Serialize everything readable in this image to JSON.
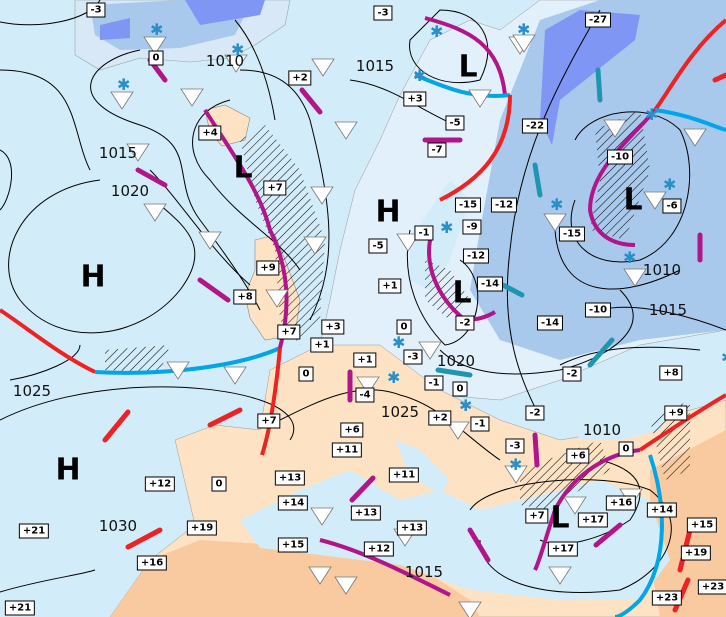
{
  "map": {
    "colors": {
      "sea": "#d3ecf9",
      "land_warm": "#fde3c4",
      "land_hot": "#f9c9a0",
      "land_cold": "#e2f0fb",
      "snow_light": "#a9c9ec",
      "snow_deep": "#7f96f4",
      "warm_front": "#ee2222",
      "cold_front": "#00a6e8",
      "occluded_front": "#b0168a",
      "cold_arrow": "#1e96b0",
      "isobar": "#000000"
    },
    "temperatures": [
      "-3",
      "0",
      "+2",
      "+4",
      "+7",
      "+9",
      "+8",
      "-3",
      "-27",
      "+3",
      "-5",
      "-7",
      "-22",
      "-10",
      "-6",
      "-15",
      "-12",
      "-9",
      "-5",
      "-1",
      "-15",
      "-12",
      "-14",
      "+1",
      "-2",
      "0",
      "-14",
      "-10",
      "+3",
      "+7",
      "+1",
      "0",
      "+1",
      "-3",
      "-4",
      "-1",
      "0",
      "+2",
      "-1",
      "+6",
      "+11",
      "-2",
      "-3",
      "+6",
      "0",
      "+9",
      "+8",
      "-2",
      "+7",
      "+13",
      "+14",
      "+15",
      "+12",
      "0",
      "+19",
      "+16",
      "+21",
      "+21",
      "+11",
      "+13",
      "+13",
      "+12",
      "+7",
      "+17",
      "+16",
      "+17",
      "+14",
      "+15",
      "+19",
      "+23",
      "+23"
    ],
    "isobar_labels": [
      "1010",
      "1015",
      "1015",
      "1020",
      "1025",
      "1030",
      "1020",
      "1025",
      "1010",
      "1015",
      "1010",
      "1015"
    ],
    "pressure_centers": [
      "H",
      "H",
      "L",
      "H",
      "L",
      "L",
      "L",
      "L"
    ],
    "symbols": {
      "shower": "shower-triangle-icon",
      "snow": "snowflake-icon",
      "rain": "raindrop-icon",
      "thunder": "thunderstorm-icon"
    }
  }
}
